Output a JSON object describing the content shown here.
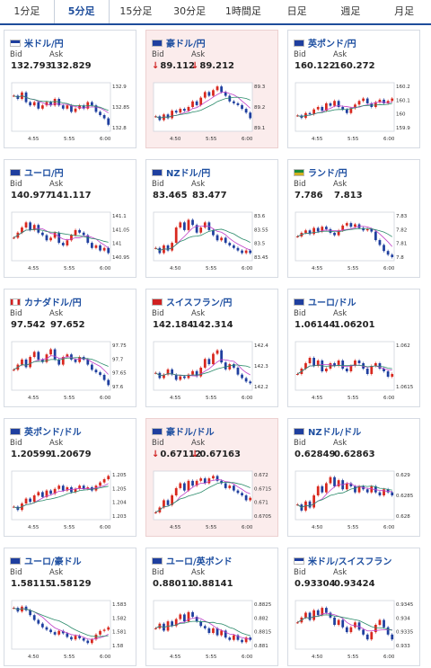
{
  "tabs": [
    {
      "label": "1分足",
      "active": false
    },
    {
      "label": "5分足",
      "active": true
    },
    {
      "label": "15分足",
      "active": false
    },
    {
      "label": "30分足",
      "active": false
    },
    {
      "label": "1時間足",
      "active": false
    },
    {
      "label": "日足",
      "active": false
    },
    {
      "label": "週足",
      "active": false
    },
    {
      "label": "月足",
      "active": false
    }
  ],
  "bid_label": "Bid",
  "ask_label": "Ask",
  "colors": {
    "up": "#d8281e",
    "down": "#1f3f9f",
    "ma": "#c040c8",
    "ma2": "#2a8a6a",
    "title": "#1d4ea0"
  },
  "cards": [
    {
      "pair": "米ドル/円",
      "flag": "us-jp",
      "bid": "132.793",
      "ask": "132.829",
      "bid_arrow": "",
      "ask_arrow": "",
      "highlight": false,
      "chart_data": {
        "type": "candlestick",
        "xticks": [
          "4:55",
          "5:55",
          "6:00"
        ],
        "yticks": [
          "132.9",
          "132.85",
          "132.8"
        ],
        "ylim": [
          132.78,
          132.93
        ],
        "closes": [
          132.89,
          132.88,
          132.9,
          132.87,
          132.86,
          132.87,
          132.85,
          132.86,
          132.87,
          132.86,
          132.88,
          132.86,
          132.85,
          132.86,
          132.84,
          132.85,
          132.86,
          132.85,
          132.87,
          132.86,
          132.84,
          132.83,
          132.82,
          132.8
        ]
      }
    },
    {
      "pair": "豪ドル/円",
      "flag": "au-jp",
      "bid": "89.112",
      "ask": "89.212",
      "bid_arrow": "↓",
      "ask_arrow": "↓",
      "highlight": true,
      "chart_data": {
        "type": "candlestick",
        "xticks": [
          "4:50",
          "5:55",
          "6:00"
        ],
        "yticks": [
          "89.3",
          "89.2",
          "89.1"
        ],
        "ylim": [
          89.06,
          89.32
        ],
        "closes": [
          89.14,
          89.12,
          89.15,
          89.13,
          89.17,
          89.16,
          89.18,
          89.17,
          89.19,
          89.22,
          89.2,
          89.24,
          89.27,
          89.25,
          89.28,
          89.3,
          89.27,
          89.25,
          89.22,
          89.21,
          89.2,
          89.18,
          89.16,
          89.13
        ]
      }
    },
    {
      "pair": "英ポンド/円",
      "flag": "gb-jp",
      "bid": "160.122",
      "ask": "160.272",
      "bid_arrow": "",
      "ask_arrow": "",
      "highlight": false,
      "chart_data": {
        "type": "candlestick",
        "xticks": [
          "4:55",
          "5:55",
          "6:00"
        ],
        "yticks": [
          "160.2",
          "160.1",
          "160",
          "159.9"
        ],
        "ylim": [
          159.85,
          160.25
        ],
        "closes": [
          159.98,
          159.96,
          160.0,
          159.99,
          160.03,
          160.05,
          160.02,
          160.08,
          160.06,
          160.1,
          160.05,
          160.03,
          160.0,
          160.04,
          160.07,
          160.1,
          160.12,
          160.08,
          160.05,
          160.09,
          160.11,
          160.08,
          160.1,
          160.12
        ]
      }
    },
    {
      "pair": "ユーロ/円",
      "flag": "eu-jp",
      "bid": "140.977",
      "ask": "141.117",
      "bid_arrow": "",
      "ask_arrow": "",
      "highlight": false,
      "chart_data": {
        "type": "candlestick",
        "xticks": [
          "4:55",
          "5:55",
          "6:00"
        ],
        "yticks": [
          "141.1",
          "141.05",
          "141",
          "140.95"
        ],
        "ylim": [
          140.93,
          141.12
        ],
        "closes": [
          141.02,
          141.04,
          141.06,
          141.08,
          141.05,
          141.07,
          141.04,
          141.03,
          141.01,
          141.02,
          141.04,
          141.0,
          140.99,
          141.01,
          141.03,
          141.05,
          141.04,
          141.03,
          141.0,
          140.98,
          140.99,
          140.97,
          140.98,
          140.96
        ]
      }
    },
    {
      "pair": "NZドル/円",
      "flag": "nz-jp",
      "bid": "83.465",
      "ask": "83.477",
      "bid_arrow": "",
      "ask_arrow": "",
      "highlight": false,
      "chart_data": {
        "type": "candlestick",
        "xticks": [
          "4:50",
          "5:55",
          "6:00"
        ],
        "yticks": [
          "83.6",
          "83.55",
          "83.5",
          "83.45"
        ],
        "ylim": [
          83.43,
          83.62
        ],
        "closes": [
          83.48,
          83.46,
          83.49,
          83.47,
          83.5,
          83.56,
          83.58,
          83.55,
          83.59,
          83.57,
          83.54,
          83.56,
          83.58,
          83.55,
          83.53,
          83.51,
          83.52,
          83.5,
          83.49,
          83.48,
          83.47,
          83.46,
          83.47,
          83.46
        ]
      }
    },
    {
      "pair": "ランド/円",
      "flag": "za-jp",
      "bid": "7.786",
      "ask": "7.813",
      "bid_arrow": "",
      "ask_arrow": "",
      "highlight": false,
      "chart_data": {
        "type": "candlestick",
        "xticks": [
          "4:55",
          "5:55",
          "6:00"
        ],
        "yticks": [
          "7.83",
          "7.82",
          "7.81",
          "7.8"
        ],
        "ylim": [
          7.795,
          7.835
        ],
        "closes": [
          7.815,
          7.818,
          7.82,
          7.817,
          7.822,
          7.819,
          7.823,
          7.821,
          7.818,
          7.816,
          7.82,
          7.824,
          7.826,
          7.823,
          7.825,
          7.822,
          7.82,
          7.821,
          7.819,
          7.812,
          7.808,
          7.803,
          7.8,
          7.798
        ]
      }
    },
    {
      "pair": "カナダドル/円",
      "flag": "ca-jp",
      "bid": "97.542",
      "ask": "97.652",
      "bid_arrow": "",
      "ask_arrow": "",
      "highlight": false,
      "chart_data": {
        "type": "candlestick",
        "xticks": [
          "4:55",
          "5:55",
          "6:00"
        ],
        "yticks": [
          "97.75",
          "97.7",
          "97.65",
          "97.6"
        ],
        "ylim": [
          97.58,
          97.77
        ],
        "closes": [
          97.66,
          97.68,
          97.7,
          97.67,
          97.71,
          97.73,
          97.7,
          97.69,
          97.72,
          97.74,
          97.7,
          97.68,
          97.71,
          97.72,
          97.7,
          97.69,
          97.71,
          97.7,
          97.68,
          97.66,
          97.65,
          97.64,
          97.62,
          97.6
        ]
      }
    },
    {
      "pair": "スイスフラン/円",
      "flag": "ch-jp",
      "bid": "142.184",
      "ask": "142.314",
      "bid_arrow": "",
      "ask_arrow": "",
      "highlight": false,
      "chart_data": {
        "type": "candlestick",
        "xticks": [
          "4:55",
          "5:55",
          "6:00"
        ],
        "yticks": [
          "142.4",
          "142.3",
          "142.2"
        ],
        "ylim": [
          142.15,
          142.43
        ],
        "closes": [
          142.25,
          142.22,
          142.24,
          142.27,
          142.24,
          142.21,
          142.23,
          142.22,
          142.24,
          142.26,
          142.23,
          142.28,
          142.33,
          142.3,
          142.36,
          142.38,
          142.31,
          142.27,
          142.3,
          142.28,
          142.24,
          142.22,
          142.2,
          142.19
        ]
      }
    },
    {
      "pair": "ユーロ/ドル",
      "flag": "eu-us",
      "bid": "1.06144",
      "ask": "1.06201",
      "bid_arrow": "",
      "ask_arrow": "",
      "highlight": false,
      "chart_data": {
        "type": "candlestick",
        "xticks": [
          "4:55",
          "5:55",
          "6:00"
        ],
        "yticks": [
          "1.062",
          "1.0615"
        ],
        "ylim": [
          1.0608,
          1.0626
        ],
        "closes": [
          1.0614,
          1.0616,
          1.0618,
          1.062,
          1.0617,
          1.0619,
          1.0615,
          1.0616,
          1.0618,
          1.0617,
          1.0619,
          1.0616,
          1.0615,
          1.0617,
          1.0619,
          1.0618,
          1.0616,
          1.0614,
          1.0617,
          1.0618,
          1.0616,
          1.0615,
          1.0613,
          1.0614
        ]
      }
    },
    {
      "pair": "英ポンド/ドル",
      "flag": "gb-us",
      "bid": "1.20599",
      "ask": "1.20679",
      "bid_arrow": "",
      "ask_arrow": "",
      "highlight": false,
      "chart_data": {
        "type": "candlestick",
        "xticks": [
          "4:55",
          "5:55",
          "6:00"
        ],
        "yticks": [
          "1.205",
          "1.205",
          "1.204",
          "1.203"
        ],
        "ylim": [
          1.2028,
          1.2058
        ],
        "closes": [
          1.2036,
          1.2034,
          1.2038,
          1.2041,
          1.2039,
          1.2043,
          1.2045,
          1.2042,
          1.2046,
          1.2044,
          1.2047,
          1.2049,
          1.2046,
          1.2048,
          1.2045,
          1.2047,
          1.2049,
          1.2047,
          1.2048,
          1.2046,
          1.2049,
          1.2051,
          1.2053,
          1.2055
        ]
      }
    },
    {
      "pair": "豪ドル/ドル",
      "flag": "au-us",
      "bid": "0.67112",
      "ask": "0.67163",
      "bid_arrow": "↓",
      "ask_arrow": "↓",
      "highlight": true,
      "chart_data": {
        "type": "candlestick",
        "xticks": [
          "4:55",
          "5:55",
          "6:00"
        ],
        "yticks": [
          "0.672",
          "0.6715",
          "0.671",
          "0.6705"
        ],
        "ylim": [
          0.6703,
          0.6723
        ],
        "closes": [
          0.6706,
          0.6708,
          0.6711,
          0.6709,
          0.6713,
          0.6716,
          0.6718,
          0.6715,
          0.6719,
          0.6717,
          0.6719,
          0.672,
          0.6718,
          0.672,
          0.6721,
          0.6719,
          0.6718,
          0.6716,
          0.6717,
          0.6715,
          0.6714,
          0.6713,
          0.6711,
          0.6712
        ]
      }
    },
    {
      "pair": "NZドル/ドル",
      "flag": "nz-us",
      "bid": "0.62849",
      "ask": "0.62863",
      "bid_arrow": "",
      "ask_arrow": "",
      "highlight": false,
      "chart_data": {
        "type": "candlestick",
        "xticks": [
          "4:50",
          "5:55",
          "6:00"
        ],
        "yticks": [
          "0.629",
          "0.6285",
          "0.628"
        ],
        "ylim": [
          0.6277,
          0.6293
        ],
        "closes": [
          0.6282,
          0.628,
          0.6283,
          0.6281,
          0.6285,
          0.6288,
          0.6286,
          0.6289,
          0.6291,
          0.6288,
          0.629,
          0.6287,
          0.6289,
          0.6288,
          0.6286,
          0.6288,
          0.6287,
          0.6286,
          0.6288,
          0.6286,
          0.6285,
          0.6287,
          0.6286,
          0.6285
        ]
      }
    },
    {
      "pair": "ユーロ/豪ドル",
      "flag": "eu-au",
      "bid": "1.58115",
      "ask": "1.58129",
      "bid_arrow": "",
      "ask_arrow": "",
      "highlight": false,
      "chart_data": {
        "type": "candlestick",
        "xticks": [
          "4:50",
          "5:55",
          "6:00"
        ],
        "yticks": [
          "1.583",
          "1.582",
          "1.581",
          "1.58"
        ],
        "ylim": [
          1.5794,
          1.5834
        ],
        "closes": [
          1.5828,
          1.5825,
          1.5829,
          1.5826,
          1.5822,
          1.5818,
          1.5815,
          1.5812,
          1.581,
          1.5808,
          1.5806,
          1.5809,
          1.5807,
          1.5804,
          1.5802,
          1.5805,
          1.5803,
          1.5801,
          1.5799,
          1.5802,
          1.5806,
          1.5809,
          1.581,
          1.5812
        ]
      }
    },
    {
      "pair": "ユーロ/英ポンド",
      "flag": "eu-gb",
      "bid": "0.88011",
      "ask": "0.88141",
      "bid_arrow": "",
      "ask_arrow": "",
      "highlight": false,
      "chart_data": {
        "type": "candlestick",
        "xticks": [
          "4:55",
          "5:55",
          "6:00"
        ],
        "yticks": [
          "0.8825",
          "0.882",
          "0.8815",
          "0.881"
        ],
        "ylim": [
          0.8806,
          0.8827
        ],
        "closes": [
          0.8815,
          0.8817,
          0.8814,
          0.8818,
          0.8816,
          0.8819,
          0.8821,
          0.8818,
          0.8822,
          0.882,
          0.8818,
          0.8816,
          0.8815,
          0.8813,
          0.8815,
          0.8812,
          0.8814,
          0.8811,
          0.881,
          0.8812,
          0.881,
          0.8809,
          0.8811,
          0.881
        ]
      }
    },
    {
      "pair": "米ドル/スイスフラン",
      "flag": "us-ch",
      "bid": "0.93304",
      "ask": "0.93424",
      "bid_arrow": "",
      "ask_arrow": "",
      "highlight": false,
      "chart_data": {
        "type": "candlestick",
        "xticks": [
          "4:50",
          "5:55",
          "6:00"
        ],
        "yticks": [
          "0.9345",
          "0.934",
          "0.9335",
          "0.933"
        ],
        "ylim": [
          0.9327,
          0.9347
        ],
        "closes": [
          0.9338,
          0.934,
          0.9342,
          0.9339,
          0.9343,
          0.9341,
          0.9344,
          0.9342,
          0.934,
          0.9337,
          0.9339,
          0.9336,
          0.9334,
          0.9336,
          0.9338,
          0.9335,
          0.9333,
          0.9331,
          0.9334,
          0.9337,
          0.9339,
          0.9336,
          0.9333,
          0.9331
        ]
      }
    }
  ]
}
